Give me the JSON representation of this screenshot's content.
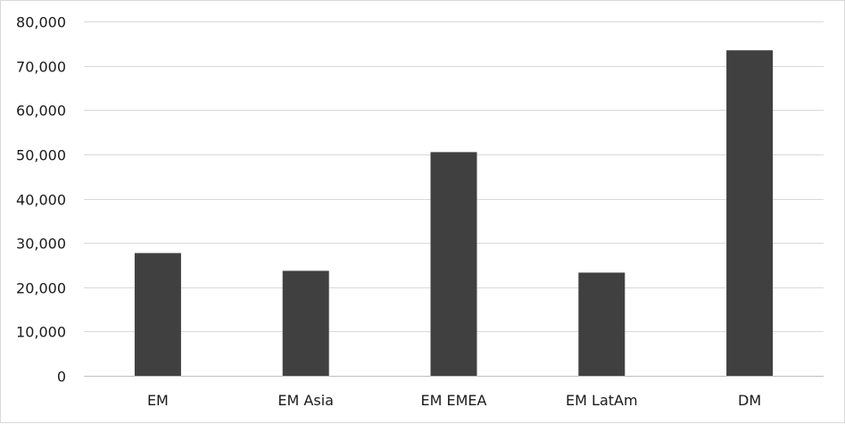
{
  "chart_data": {
    "type": "bar",
    "categories": [
      "EM",
      "EM Asia",
      "EM EMEA",
      "EM LatAm",
      "DM"
    ],
    "values": [
      27700,
      23700,
      50500,
      23300,
      73500
    ],
    "title": "",
    "xlabel": "",
    "ylabel": "",
    "ylim": [
      0,
      80000
    ],
    "yticks": [
      0,
      10000,
      20000,
      30000,
      40000,
      50000,
      60000,
      70000,
      80000
    ],
    "ytick_labels": [
      "0",
      "10,000",
      "20,000",
      "30,000",
      "40,000",
      "50,000",
      "60,000",
      "70,000",
      "80,000"
    ],
    "grid": true,
    "legend": "none",
    "bar_color": "#404040"
  }
}
